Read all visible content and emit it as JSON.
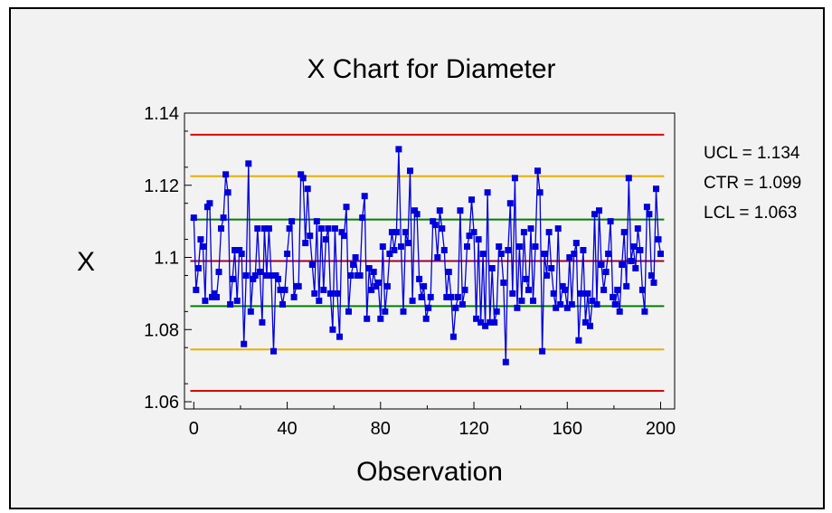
{
  "chart_data": {
    "type": "line",
    "title": "X Chart for Diameter",
    "xlabel": "Observation",
    "ylabel": "X",
    "xlim": [
      -4,
      206
    ],
    "ylim": [
      1.058,
      1.14
    ],
    "x_ticks": [
      0,
      40,
      80,
      120,
      160,
      200
    ],
    "x_tick_labels": [
      "0",
      "40",
      "80",
      "120",
      "160",
      "200"
    ],
    "y_ticks": [
      1.06,
      1.08,
      1.1,
      1.12,
      1.14
    ],
    "y_tick_labels": [
      "1.06",
      "1.08",
      "1.1",
      "1.12",
      "1.14"
    ],
    "grid": false,
    "control_limits": {
      "ucl": 1.134,
      "ctr": 1.099,
      "lcl": 1.063,
      "ucl_label": "UCL = 1.134",
      "ctr_label": "CTR = 1.099",
      "lcl_label": "LCL = 1.063"
    },
    "zone_lines": {
      "upper_2sigma": 1.1225,
      "lower_2sigma": 1.0745,
      "upper_1sigma": 1.1105,
      "lower_1sigma": 1.0865
    },
    "colors": {
      "series": "#0000dd",
      "control_limits": "#dd0000",
      "center": "#990033",
      "two_sigma": "#e8b000",
      "one_sigma": "#008000"
    },
    "series": [
      {
        "values": [
          1.111,
          1.091,
          1.097,
          1.105,
          1.103,
          1.088,
          1.114,
          1.115,
          1.089,
          1.09,
          1.089,
          1.096,
          1.108,
          1.111,
          1.123,
          1.118,
          1.087,
          1.094,
          1.102,
          1.088,
          1.102,
          1.101,
          1.076,
          1.095,
          1.126,
          1.085,
          1.094,
          1.095,
          1.108,
          1.096,
          1.082,
          1.108,
          1.095,
          1.108,
          1.095,
          1.074,
          1.095,
          1.094,
          1.091,
          1.087,
          1.091,
          1.101,
          1.108,
          1.11,
          1.089,
          1.092,
          1.092,
          1.123,
          1.122,
          1.104,
          1.119,
          1.106,
          1.098,
          1.09,
          1.11,
          1.088,
          1.108,
          1.091,
          1.105,
          1.108,
          1.09,
          1.08,
          1.108,
          1.09,
          1.078,
          1.107,
          1.106,
          1.114,
          1.085,
          1.095,
          1.098,
          1.1,
          1.095,
          1.095,
          1.111,
          1.117,
          1.083,
          1.097,
          1.091,
          1.096,
          1.092,
          1.093,
          1.083,
          1.103,
          1.085,
          1.092,
          1.101,
          1.107,
          1.102,
          1.107,
          1.13,
          1.103,
          1.085,
          1.107,
          1.104,
          1.124,
          1.088,
          1.113,
          1.112,
          1.094,
          1.089,
          1.092,
          1.083,
          1.086,
          1.089,
          1.11,
          1.109,
          1.1,
          1.113,
          1.108,
          1.102,
          1.089,
          1.096,
          1.089,
          1.078,
          1.086,
          1.089,
          1.113,
          1.087,
          1.091,
          1.103,
          1.106,
          1.116,
          1.107,
          1.083,
          1.105,
          1.082,
          1.101,
          1.081,
          1.118,
          1.082,
          1.097,
          1.082,
          1.085,
          1.103,
          1.101,
          1.093,
          1.071,
          1.102,
          1.115,
          1.09,
          1.122,
          1.086,
          1.103,
          1.088,
          1.107,
          1.094,
          1.091,
          1.108,
          1.088,
          1.103,
          1.124,
          1.118,
          1.074,
          1.101,
          1.095,
          1.107,
          1.097,
          1.09,
          1.086,
          1.108,
          1.087,
          1.092,
          1.091,
          1.086,
          1.1,
          1.087,
          1.101,
          1.104,
          1.077,
          1.09,
          1.102,
          1.082,
          1.09,
          1.081,
          1.088,
          1.112,
          1.087,
          1.113,
          1.098,
          1.091,
          1.096,
          1.101,
          1.11,
          1.089,
          1.087,
          1.091,
          1.085,
          1.098,
          1.107,
          1.092,
          1.122,
          1.099,
          1.103,
          1.097,
          1.108,
          1.102,
          1.091,
          1.085,
          1.114,
          1.112,
          1.095,
          1.093,
          1.119,
          1.105,
          1.101
        ]
      }
    ]
  }
}
